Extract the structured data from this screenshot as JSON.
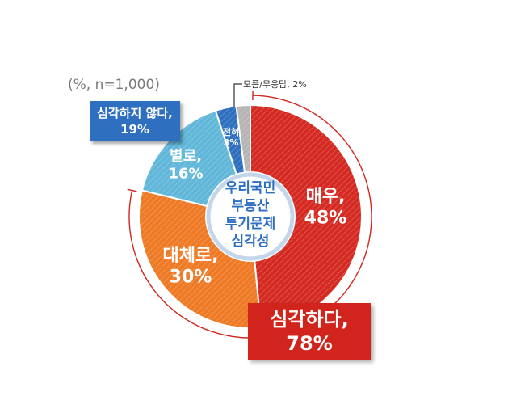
{
  "note": "(%, n=1,000)",
  "center_label": [
    "우리국민",
    "부동산",
    "투기문제",
    "심각성"
  ],
  "callouts": {
    "not_serious": {
      "line1": "심각하지 않다,",
      "line2": "19%"
    },
    "serious": {
      "line1": "심각하다,",
      "line2": "78%"
    },
    "dont_know": "모름/무응답, 2%"
  },
  "colors": {
    "very": "#d42a22",
    "somewhat": "#ee7a25",
    "not_much": "#61b7d9",
    "not_at_all": "#2f6fbf",
    "dont_know": "#b5b5b5",
    "ring": "#6b9bd1",
    "arc": "#d0241c"
  },
  "chart_data": {
    "type": "pie",
    "title": "",
    "slices": [
      {
        "key": "very",
        "name": "매우,",
        "value": 48,
        "label": "48%"
      },
      {
        "key": "somewhat",
        "name": "대체로,",
        "value": 30,
        "label": "30%"
      },
      {
        "key": "not_much",
        "name": "별로,",
        "value": 16,
        "label": "16%"
      },
      {
        "key": "not_at_all",
        "name": "전혀",
        "value": 3,
        "label": "3%"
      },
      {
        "key": "dont_know",
        "name": "",
        "value": 2,
        "label": ""
      }
    ]
  }
}
